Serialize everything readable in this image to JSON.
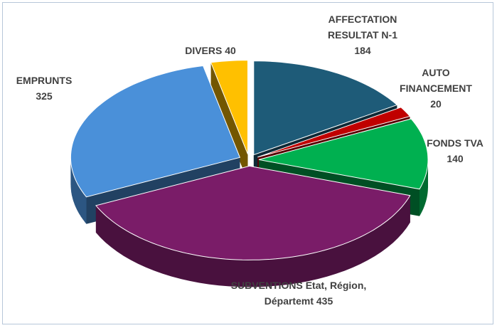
{
  "chart_data": {
    "type": "pie",
    "categories": [
      "AFFECTATION RESULTAT N-1",
      "AUTO FINANCEMENT",
      "FONDS TVA",
      "SUBVENTIONS Etat, Région, Départemt",
      "EMPRUNTS",
      "DIVERS"
    ],
    "values": [
      184,
      20,
      140,
      435,
      325,
      40
    ],
    "colors": [
      "#1e5b78",
      "#c00000",
      "#00b050",
      "#7a1c68",
      "#4a90d9",
      "#ffc000"
    ]
  }
}
